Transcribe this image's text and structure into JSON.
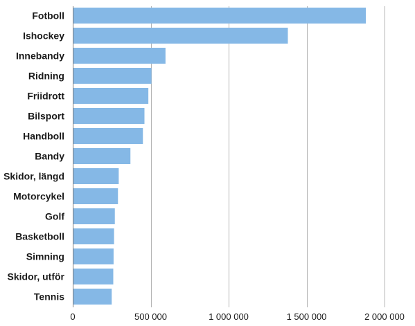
{
  "chart_data": {
    "type": "bar",
    "orientation": "horizontal",
    "title": "",
    "xlabel": "",
    "ylabel": "",
    "categories": [
      "Fotboll",
      "Ishockey",
      "Innebandy",
      "Ridning",
      "Friidrott",
      "Bilsport",
      "Handboll",
      "Bandy",
      "Skidor, längd",
      "Motorcykel",
      "Golf",
      "Basketboll",
      "Simning",
      "Skidor, utför",
      "Tennis"
    ],
    "values": [
      1880000,
      1380000,
      595000,
      505000,
      485000,
      460000,
      450000,
      370000,
      295000,
      290000,
      270000,
      265000,
      262000,
      260000,
      250000
    ],
    "xlim": [
      0,
      2000000
    ],
    "xticks": [
      0,
      500000,
      1000000,
      1500000,
      2000000
    ],
    "xtick_labels": [
      "0",
      "500 000",
      "1 000 000",
      "1 500 000",
      "2 000 000"
    ],
    "grid": "vertical",
    "legend": "none",
    "bar_color": "#85b8e6",
    "grid_color": "#b3b3b3"
  }
}
